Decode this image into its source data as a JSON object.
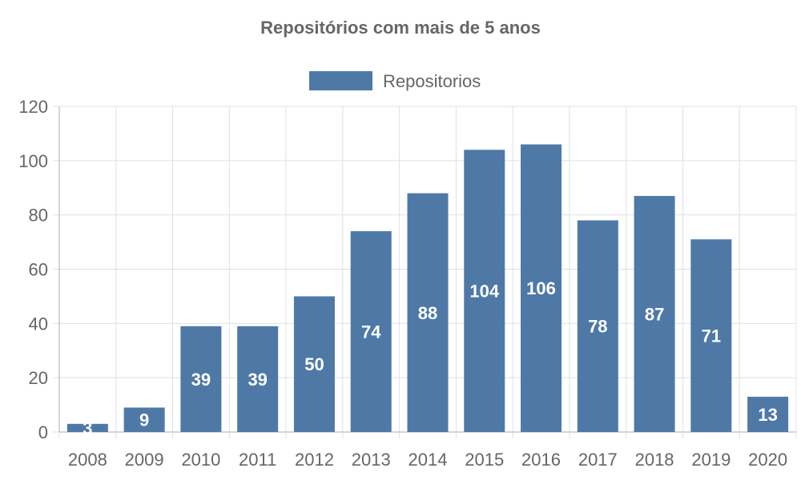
{
  "chart_data": {
    "type": "bar",
    "title": "Repositórios com mais de 5 anos",
    "xlabel": "",
    "ylabel": "",
    "categories": [
      "2008",
      "2009",
      "2010",
      "2011",
      "2012",
      "2013",
      "2014",
      "2015",
      "2016",
      "2017",
      "2018",
      "2019",
      "2020"
    ],
    "series": [
      {
        "name": "Repositorios",
        "color": "#4e79a7",
        "values": [
          3,
          9,
          39,
          39,
          50,
          74,
          88,
          104,
          106,
          78,
          87,
          71,
          13
        ]
      }
    ],
    "ylim": [
      0,
      120
    ],
    "yticks": [
      0,
      20,
      40,
      60,
      80,
      100,
      120
    ],
    "grid": true,
    "legend": "top-center",
    "data_labels": true
  }
}
